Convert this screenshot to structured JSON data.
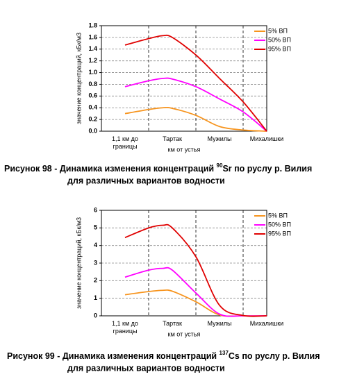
{
  "chart_data": [
    {
      "type": "line",
      "y_label": "значение концентраций, кБк/м3",
      "x_label": "км от устья",
      "xlim": [
        0,
        3.5
      ],
      "xticks": [
        {
          "value": 0.5,
          "label": "1,1 км до границы"
        },
        {
          "value": 1.5,
          "label": "Тартак"
        },
        {
          "value": 2.5,
          "label": "Мужилы"
        },
        {
          "value": 3.5,
          "label": "Михалишки"
        }
      ],
      "xgrid": [
        1,
        2,
        3
      ],
      "ylim": [
        0,
        1.8
      ],
      "yticks": [
        {
          "value": 0,
          "label": "0.0"
        },
        {
          "value": 0.2,
          "label": "0.2"
        },
        {
          "value": 0.4,
          "label": "0.4"
        },
        {
          "value": 0.6,
          "label": "0.6"
        },
        {
          "value": 0.8,
          "label": "0.8"
        },
        {
          "value": 1,
          "label": "1.0"
        },
        {
          "value": 1.2,
          "label": "1.2"
        },
        {
          "value": 1.4,
          "label": "1.4"
        },
        {
          "value": 1.6,
          "label": "1.6"
        },
        {
          "value": 1.8,
          "label": "1.8"
        }
      ],
      "legend": "upper right",
      "x": [
        0.5,
        1,
        1.3,
        1.5,
        2,
        2.5,
        3,
        3.5
      ],
      "series": [
        {
          "name": "5% ВП",
          "color": "#f7941d",
          "values": [
            0.3,
            0.37,
            0.4,
            0.39,
            0.27,
            0.08,
            0.02,
            0
          ]
        },
        {
          "name": "50% ВП",
          "color": "#ff00ff",
          "values": [
            0.76,
            0.86,
            0.9,
            0.89,
            0.76,
            0.55,
            0.33,
            0
          ]
        },
        {
          "name": "95% ВП",
          "color": "#e00000",
          "values": [
            1.47,
            1.58,
            1.63,
            1.6,
            1.3,
            0.9,
            0.5,
            0
          ]
        }
      ],
      "caption": {
        "prefix": "Рисунок 98 - Динамика изменения концентраций ",
        "sup": "90",
        "rest": "Sr по руслу р. Вилия",
        "line2": "для различных вариантов водности"
      }
    },
    {
      "type": "line",
      "y_label": "значение концентраций, кБк/м3",
      "x_label": "км от устья",
      "xlim": [
        0,
        3.5
      ],
      "xticks": [
        {
          "value": 0.5,
          "label": "1,1 км до границы"
        },
        {
          "value": 1.5,
          "label": "Тартак"
        },
        {
          "value": 2.5,
          "label": "Мужилы"
        },
        {
          "value": 3.5,
          "label": "Михалишки"
        }
      ],
      "xgrid": [
        1,
        2,
        3
      ],
      "ylim": [
        0,
        6
      ],
      "yticks": [
        0,
        1,
        2,
        3,
        4,
        5,
        6
      ],
      "legend": "upper right",
      "x": [
        0.5,
        1,
        1.3,
        1.5,
        2,
        2.5,
        3,
        3.5
      ],
      "series": [
        {
          "name": "5% ВП",
          "color": "#f7941d",
          "values": [
            1.2,
            1.38,
            1.45,
            1.4,
            0.8,
            0.05,
            0,
            0
          ]
        },
        {
          "name": "50% ВП",
          "color": "#ff00ff",
          "values": [
            2.2,
            2.6,
            2.7,
            2.6,
            1.3,
            0.1,
            0,
            0
          ]
        },
        {
          "name": "95% ВП",
          "color": "#e00000",
          "values": [
            4.45,
            5.0,
            5.15,
            5.0,
            3.36,
            0.6,
            0.02,
            0
          ]
        }
      ],
      "caption": {
        "prefix": "Рисунок 99 - Динамика изменения концентраций ",
        "sup": "137",
        "rest": "Cs  по руслу р. Вилия",
        "line2": "для различных вариантов водности"
      }
    }
  ]
}
